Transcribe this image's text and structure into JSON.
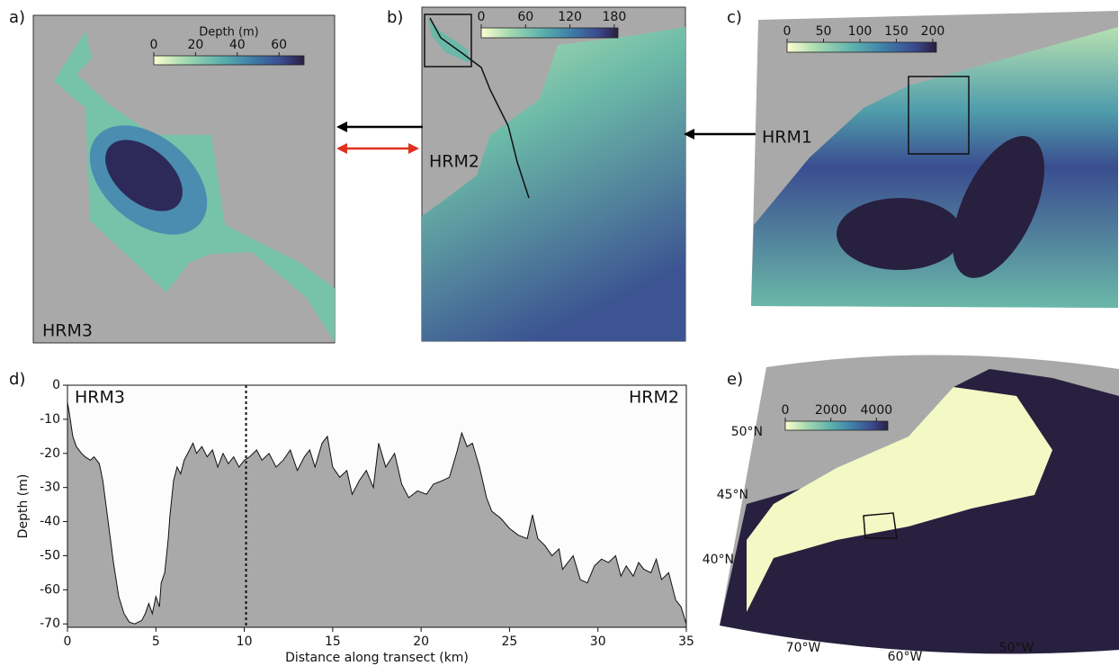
{
  "maps": [
    {
      "panel": "a)",
      "label": "HRM3",
      "colorbar": {
        "title": "Depth (m)",
        "ticks": [
          0,
          20,
          40,
          60
        ],
        "clim": [
          0,
          72
        ]
      }
    },
    {
      "panel": "b)",
      "label": "HRM2",
      "colorbar": {
        "ticks": [
          0,
          60,
          120,
          180
        ],
        "clim": [
          0,
          185
        ]
      }
    },
    {
      "panel": "c)",
      "label": "HRM1",
      "colorbar": {
        "ticks": [
          0,
          50,
          100,
          150,
          200
        ],
        "clim": [
          0,
          205
        ]
      }
    },
    {
      "panel": "e)",
      "colorbar": {
        "ticks": [
          0,
          2000,
          4000
        ],
        "clim": [
          0,
          4500
        ]
      },
      "lat_labels": [
        "50°N",
        "45°N",
        "40°N"
      ],
      "lon_labels": [
        "70°W",
        "60°W",
        "50°W"
      ]
    }
  ],
  "chart_data": {
    "type": "area",
    "panel": "d)",
    "xlabel": "Distance along transect (km)",
    "ylabel": "Depth (m)",
    "xlim": [
      0,
      35
    ],
    "ylim": [
      -71,
      0
    ],
    "xticks": [
      0,
      5,
      10,
      15,
      20,
      25,
      30,
      35
    ],
    "yticks": [
      0,
      -10,
      -20,
      -30,
      -40,
      -50,
      -60,
      -70
    ],
    "vline": 10.1,
    "annotations": [
      "HRM3",
      "HRM2"
    ],
    "color": "#a9a9a9",
    "x": [
      0,
      0.1,
      0.3,
      0.5,
      0.8,
      1,
      1.3,
      1.5,
      1.8,
      2,
      2.3,
      2.6,
      2.9,
      3.2,
      3.5,
      3.8,
      4.2,
      4.4,
      4.6,
      4.8,
      5,
      5.2,
      5.3,
      5.5,
      5.7,
      5.8,
      6,
      6.2,
      6.4,
      6.6,
      6.9,
      7.1,
      7.3,
      7.6,
      7.9,
      8.2,
      8.5,
      8.8,
      9.1,
      9.4,
      9.7,
      10,
      10.3,
      10.7,
      11,
      11.4,
      11.8,
      12.2,
      12.6,
      13,
      13.4,
      13.7,
      14,
      14.4,
      14.7,
      15,
      15.4,
      15.8,
      16.1,
      16.5,
      16.9,
      17.3,
      17.6,
      18,
      18.5,
      18.9,
      19.3,
      19.8,
      20.3,
      20.7,
      21.2,
      21.6,
      22,
      22.3,
      22.6,
      22.9,
      23.3,
      23.7,
      24,
      24.5,
      25,
      25.5,
      26,
      26.3,
      26.6,
      27,
      27.4,
      27.8,
      28,
      28.3,
      28.6,
      29,
      29.4,
      29.8,
      30.2,
      30.6,
      31,
      31.3,
      31.6,
      32,
      32.3,
      32.6,
      33,
      33.3,
      33.6,
      34,
      34.4,
      34.7,
      35
    ],
    "values": [
      -5,
      -8,
      -15,
      -18,
      -20,
      -21,
      -22,
      -21,
      -23,
      -28,
      -40,
      -52,
      -62,
      -67,
      -69.5,
      -70,
      -69,
      -67,
      -64,
      -67,
      -62,
      -65,
      -58,
      -55,
      -45,
      -38,
      -28,
      -24,
      -26,
      -22,
      -19,
      -17,
      -20,
      -18,
      -21,
      -19,
      -24,
      -20,
      -23,
      -21,
      -24,
      -22,
      -21,
      -19,
      -22,
      -20,
      -24,
      -22,
      -19,
      -25,
      -21,
      -19,
      -24,
      -17,
      -15,
      -24,
      -27,
      -25,
      -32,
      -28,
      -25,
      -30,
      -17,
      -24,
      -20,
      -29,
      -33,
      -31,
      -32,
      -29,
      -28,
      -27,
      -20,
      -14,
      -18,
      -17,
      -24,
      -33,
      -37,
      -39,
      -42,
      -44,
      -45,
      -38,
      -45,
      -47,
      -50,
      -48,
      -54,
      -52,
      -50,
      -57,
      -58,
      -53,
      -51,
      -52,
      -50,
      -56,
      -53,
      -56,
      -52,
      -54,
      -55,
      -51,
      -57,
      -55,
      -63,
      -65,
      -70
    ]
  }
}
